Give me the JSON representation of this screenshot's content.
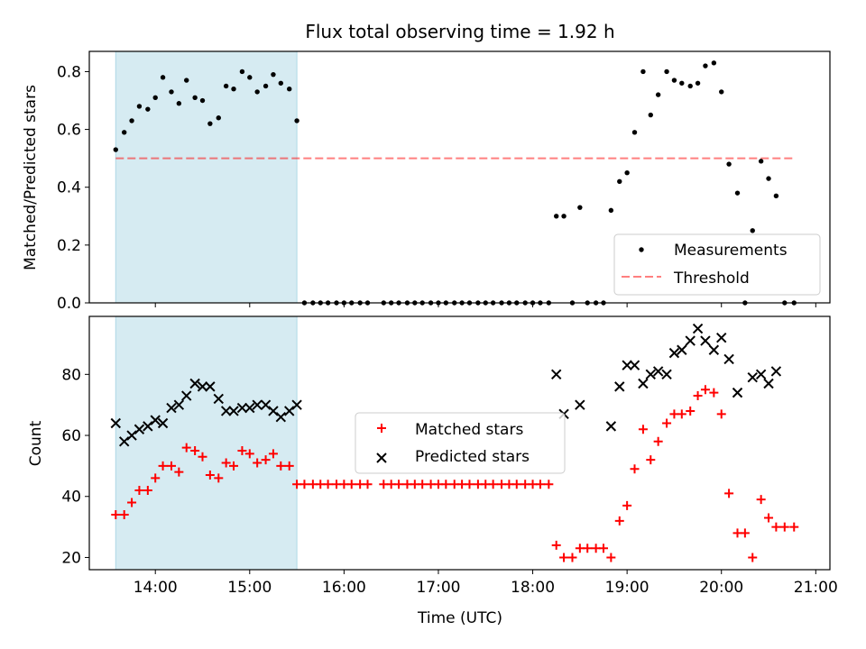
{
  "title": "Flux total observing time = 1.92 h",
  "colors": {
    "shade": "#add8e6",
    "threshold": "#ff0000",
    "matched": "#ff0000",
    "predicted": "#000000",
    "measurement": "#000000"
  },
  "chart_data": [
    {
      "type": "scatter",
      "ylabel": "Matched/Predicted stars",
      "xlim": [
        13.3,
        21.15
      ],
      "ylim": [
        0,
        0.87
      ],
      "yticks": [
        0.0,
        0.2,
        0.4,
        0.6,
        0.8
      ],
      "ytick_labels": [
        "0.0",
        "0.2",
        "0.4",
        "0.6",
        "0.8"
      ],
      "shaded_span": [
        13.58,
        15.5
      ],
      "threshold": {
        "value": 0.5,
        "x": [
          13.58,
          20.77
        ]
      },
      "legend": {
        "position": "lower right",
        "items": [
          "Measurements",
          "Threshold"
        ]
      },
      "series": [
        {
          "name": "Measurements",
          "x": [
            13.58,
            13.67,
            13.75,
            13.83,
            13.92,
            14.0,
            14.08,
            14.17,
            14.25,
            14.33,
            14.42,
            14.5,
            14.58,
            14.67,
            14.75,
            14.83,
            14.92,
            15.0,
            15.08,
            15.17,
            15.25,
            15.33,
            15.42,
            15.5,
            15.58,
            15.67,
            15.75,
            15.83,
            15.92,
            16.0,
            16.08,
            16.17,
            16.25,
            16.42,
            16.5,
            16.58,
            16.67,
            16.75,
            16.83,
            16.92,
            17.0,
            17.08,
            17.17,
            17.25,
            17.33,
            17.42,
            17.5,
            17.58,
            17.67,
            17.75,
            17.83,
            17.92,
            18.0,
            18.08,
            18.17,
            18.25,
            18.33,
            18.42,
            18.5,
            18.58,
            18.67,
            18.75,
            18.83,
            18.92,
            19.0,
            19.08,
            19.17,
            19.25,
            19.33,
            19.42,
            19.5,
            19.58,
            19.67,
            19.75,
            19.83,
            19.92,
            20.0,
            20.08,
            20.17,
            20.25,
            20.33,
            20.42,
            20.5,
            20.58,
            20.67,
            20.77
          ],
          "y": [
            0.53,
            0.59,
            0.63,
            0.68,
            0.67,
            0.71,
            0.78,
            0.73,
            0.69,
            0.77,
            0.71,
            0.7,
            0.62,
            0.64,
            0.75,
            0.74,
            0.8,
            0.78,
            0.73,
            0.75,
            0.79,
            0.76,
            0.74,
            0.63,
            0,
            0,
            0,
            0,
            0,
            0,
            0,
            0,
            0,
            0,
            0,
            0,
            0,
            0,
            0,
            0,
            0,
            0,
            0,
            0,
            0,
            0,
            0,
            0,
            0,
            0,
            0,
            0,
            0,
            0,
            0,
            0.3,
            0.3,
            0,
            0.33,
            0,
            0,
            0,
            0.32,
            0.42,
            0.45,
            0.59,
            0.8,
            0.65,
            0.72,
            0.8,
            0.77,
            0.76,
            0.75,
            0.76,
            0.82,
            0.83,
            0.73,
            0.48,
            0.38,
            0,
            0.25,
            0.49,
            0.43,
            0.37,
            0,
            0
          ]
        }
      ]
    },
    {
      "type": "scatter",
      "xlabel": "Time (UTC)",
      "ylabel": "Count",
      "xlim": [
        13.3,
        21.15
      ],
      "ylim": [
        16,
        99
      ],
      "xticks": [
        14,
        15,
        16,
        17,
        18,
        19,
        20,
        21
      ],
      "xtick_labels": [
        "14:00",
        "15:00",
        "16:00",
        "17:00",
        "18:00",
        "19:00",
        "20:00",
        "21:00"
      ],
      "yticks": [
        20,
        40,
        60,
        80
      ],
      "ytick_labels": [
        "20",
        "40",
        "60",
        "80"
      ],
      "shaded_span": [
        13.58,
        15.5
      ],
      "legend": {
        "position": "center",
        "items": [
          "Matched stars",
          "Predicted stars"
        ]
      },
      "series": [
        {
          "name": "Matched stars",
          "x": [
            13.58,
            13.67,
            13.75,
            13.83,
            13.92,
            14.0,
            14.08,
            14.17,
            14.25,
            14.33,
            14.42,
            14.5,
            14.58,
            14.67,
            14.75,
            14.83,
            14.92,
            15.0,
            15.08,
            15.17,
            15.25,
            15.33,
            15.42,
            15.5,
            15.58,
            15.67,
            15.75,
            15.83,
            15.92,
            16.0,
            16.08,
            16.17,
            16.25,
            16.42,
            16.5,
            16.58,
            16.67,
            16.75,
            16.83,
            16.92,
            17.0,
            17.08,
            17.17,
            17.25,
            17.33,
            17.42,
            17.5,
            17.58,
            17.67,
            17.75,
            17.83,
            17.92,
            18.0,
            18.08,
            18.17,
            18.25,
            18.33,
            18.42,
            18.5,
            18.58,
            18.67,
            18.75,
            18.83,
            18.92,
            19.0,
            19.08,
            19.17,
            19.25,
            19.33,
            19.42,
            19.5,
            19.58,
            19.67,
            19.75,
            19.83,
            19.92,
            20.0,
            20.08,
            20.17,
            20.25,
            20.33,
            20.42,
            20.5,
            20.58,
            20.67,
            20.77
          ],
          "y": [
            34,
            34,
            38,
            42,
            42,
            46,
            50,
            50,
            48,
            56,
            55,
            53,
            47,
            46,
            51,
            50,
            55,
            54,
            51,
            52,
            54,
            50,
            50,
            44,
            44,
            44,
            44,
            44,
            44,
            44,
            44,
            44,
            44,
            44,
            44,
            44,
            44,
            44,
            44,
            44,
            44,
            44,
            44,
            44,
            44,
            44,
            44,
            44,
            44,
            44,
            44,
            44,
            44,
            44,
            44,
            24,
            20,
            20,
            23,
            23,
            23,
            23,
            20,
            32,
            37,
            49,
            62,
            52,
            58,
            64,
            67,
            67,
            68,
            73,
            75,
            74,
            67,
            41,
            28,
            28,
            20,
            39,
            33,
            30,
            30,
            30
          ]
        },
        {
          "name": "Predicted stars",
          "x": [
            13.58,
            13.67,
            13.75,
            13.83,
            13.92,
            14.0,
            14.08,
            14.17,
            14.25,
            14.33,
            14.42,
            14.5,
            14.58,
            14.67,
            14.75,
            14.83,
            14.92,
            15.0,
            15.08,
            15.17,
            15.25,
            15.33,
            15.42,
            15.5,
            18.25,
            18.33,
            18.5,
            18.83,
            18.92,
            19.0,
            19.08,
            19.17,
            19.25,
            19.33,
            19.42,
            19.5,
            19.58,
            19.67,
            19.75,
            19.83,
            19.92,
            20.0,
            20.08,
            20.17,
            20.33,
            20.42,
            20.5,
            20.58
          ],
          "y": [
            64,
            58,
            60,
            62,
            63,
            65,
            64,
            69,
            70,
            73,
            77,
            76,
            76,
            72,
            68,
            68,
            69,
            69,
            70,
            70,
            68,
            66,
            68,
            70,
            80,
            67,
            70,
            63,
            76,
            83,
            83,
            77,
            80,
            81,
            80,
            87,
            88,
            91,
            95,
            91,
            88,
            92,
            85,
            74,
            79,
            80,
            77,
            81
          ]
        }
      ]
    }
  ]
}
